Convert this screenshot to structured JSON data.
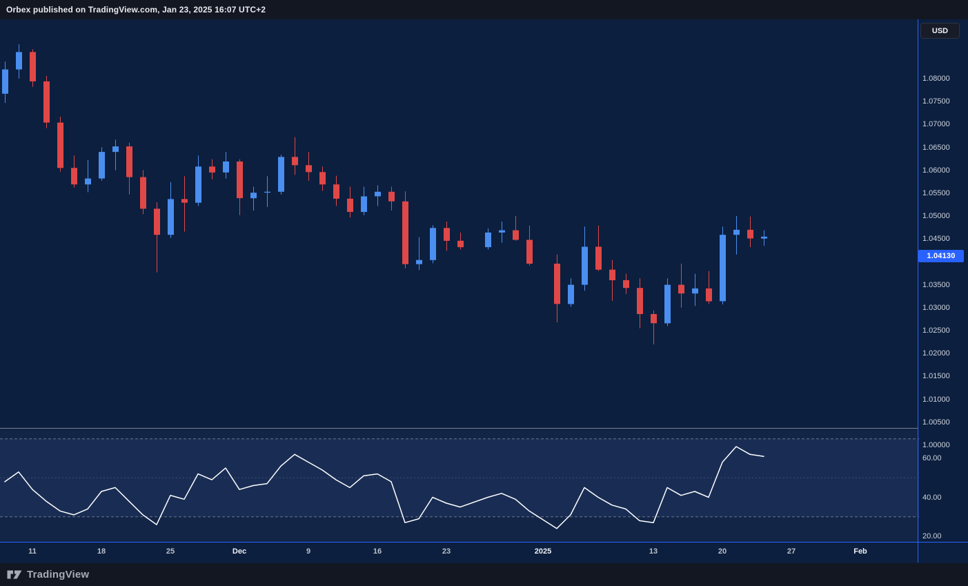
{
  "header": {
    "attribution": "Orbex published on TradingView.com, Jan 23, 2025 16:07 UTC+2"
  },
  "price_axis": {
    "currency_button": "USD"
  },
  "footer": {
    "brand": "TradingView"
  },
  "chart_data": {
    "type": "candlestick",
    "title": "",
    "last_price": {
      "label": "1.04130",
      "value": 1.0413
    },
    "colors": {
      "background": "#0c1f3e",
      "up": "#4a8ef0",
      "down": "#e04848",
      "rsi_line": "#ffffff",
      "accent_blue": "#2962ff",
      "level_line": "#8a8ea0"
    },
    "y_axis": {
      "min": 1.0,
      "max": 1.08,
      "tick_step": 0.005,
      "ticks": [
        {
          "label": "1.08000",
          "price": 1.08
        },
        {
          "label": "1.07500",
          "price": 1.075
        },
        {
          "label": "1.07000",
          "price": 1.07
        },
        {
          "label": "1.06500",
          "price": 1.065
        },
        {
          "label": "1.06000",
          "price": 1.06
        },
        {
          "label": "1.05500",
          "price": 1.055
        },
        {
          "label": "1.05000",
          "price": 1.05
        },
        {
          "label": "1.04500",
          "price": 1.045
        },
        {
          "label": "1.03500",
          "price": 1.035
        },
        {
          "label": "1.03000",
          "price": 1.03
        },
        {
          "label": "1.02500",
          "price": 1.025
        },
        {
          "label": "1.02000",
          "price": 1.02
        },
        {
          "label": "1.01500",
          "price": 1.015
        },
        {
          "label": "1.01000",
          "price": 1.01
        },
        {
          "label": "1.00500",
          "price": 1.005
        },
        {
          "label": "1.00000",
          "price": 1.0
        }
      ]
    },
    "x_axis": {
      "ticks": [
        {
          "label": "11",
          "slot": 2,
          "major": false
        },
        {
          "label": "18",
          "slot": 7,
          "major": false
        },
        {
          "label": "25",
          "slot": 12,
          "major": false
        },
        {
          "label": "Dec",
          "slot": 17,
          "major": true
        },
        {
          "label": "9",
          "slot": 22,
          "major": false
        },
        {
          "label": "16",
          "slot": 27,
          "major": false
        },
        {
          "label": "23",
          "slot": 32,
          "major": false
        },
        {
          "label": "2025",
          "slot": 39,
          "major": true
        },
        {
          "label": "13",
          "slot": 47,
          "major": false
        },
        {
          "label": "20",
          "slot": 52,
          "major": false
        },
        {
          "label": "27",
          "slot": 57,
          "major": false
        },
        {
          "label": "Feb",
          "slot": 62,
          "major": true
        }
      ]
    },
    "candles": [
      {
        "d": "Nov 7",
        "s": 0,
        "o": 1.0725,
        "h": 1.0795,
        "l": 1.0705,
        "c": 1.0778
      },
      {
        "d": "Nov 8",
        "s": 1,
        "o": 1.0778,
        "h": 1.0833,
        "l": 1.0758,
        "c": 1.0816
      },
      {
        "d": "Nov 11",
        "s": 2,
        "o": 1.0816,
        "h": 1.0822,
        "l": 1.074,
        "c": 1.0752
      },
      {
        "d": "Nov 12",
        "s": 3,
        "o": 1.0752,
        "h": 1.0764,
        "l": 1.065,
        "c": 1.0662
      },
      {
        "d": "Nov 13",
        "s": 4,
        "o": 1.0662,
        "h": 1.0675,
        "l": 1.0555,
        "c": 1.0563
      },
      {
        "d": "Nov 14",
        "s": 5,
        "o": 1.0563,
        "h": 1.059,
        "l": 1.052,
        "c": 1.0527
      },
      {
        "d": "Nov 15",
        "s": 6,
        "o": 1.0527,
        "h": 1.058,
        "l": 1.051,
        "c": 1.054
      },
      {
        "d": "Nov 18",
        "s": 7,
        "o": 1.054,
        "h": 1.0608,
        "l": 1.0535,
        "c": 1.0598
      },
      {
        "d": "Nov 19",
        "s": 8,
        "o": 1.0598,
        "h": 1.0625,
        "l": 1.0558,
        "c": 1.061
      },
      {
        "d": "Nov 20",
        "s": 9,
        "o": 1.061,
        "h": 1.0618,
        "l": 1.0505,
        "c": 1.0543
      },
      {
        "d": "Nov 21",
        "s": 10,
        "o": 1.0543,
        "h": 1.0558,
        "l": 1.0462,
        "c": 1.0474
      },
      {
        "d": "Nov 22",
        "s": 11,
        "o": 1.0474,
        "h": 1.0488,
        "l": 1.0335,
        "c": 1.0417
      },
      {
        "d": "Nov 25",
        "s": 12,
        "o": 1.0417,
        "h": 1.0532,
        "l": 1.041,
        "c": 1.0495
      },
      {
        "d": "Nov 26",
        "s": 13,
        "o": 1.0495,
        "h": 1.0545,
        "l": 1.0424,
        "c": 1.0487
      },
      {
        "d": "Nov 27",
        "s": 14,
        "o": 1.0487,
        "h": 1.059,
        "l": 1.048,
        "c": 1.0566
      },
      {
        "d": "Nov 28",
        "s": 15,
        "o": 1.0566,
        "h": 1.0582,
        "l": 1.0538,
        "c": 1.0553
      },
      {
        "d": "Nov 29",
        "s": 16,
        "o": 1.0553,
        "h": 1.0598,
        "l": 1.054,
        "c": 1.0577
      },
      {
        "d": "Dec 2",
        "s": 17,
        "o": 1.0577,
        "h": 1.0582,
        "l": 1.046,
        "c": 1.0497
      },
      {
        "d": "Dec 3",
        "s": 18,
        "o": 1.0497,
        "h": 1.0522,
        "l": 1.047,
        "c": 1.0509
      },
      {
        "d": "Dec 4",
        "s": 19,
        "o": 1.0509,
        "h": 1.0545,
        "l": 1.0478,
        "c": 1.0511
      },
      {
        "d": "Dec 5",
        "s": 20,
        "o": 1.0511,
        "h": 1.0592,
        "l": 1.0505,
        "c": 1.0587
      },
      {
        "d": "Dec 6",
        "s": 21,
        "o": 1.0587,
        "h": 1.063,
        "l": 1.0548,
        "c": 1.0569
      },
      {
        "d": "Dec 9",
        "s": 22,
        "o": 1.0569,
        "h": 1.0598,
        "l": 1.0535,
        "c": 1.0554
      },
      {
        "d": "Dec 10",
        "s": 23,
        "o": 1.0554,
        "h": 1.0566,
        "l": 1.0513,
        "c": 1.0527
      },
      {
        "d": "Dec 11",
        "s": 24,
        "o": 1.0527,
        "h": 1.0546,
        "l": 1.048,
        "c": 1.0496
      },
      {
        "d": "Dec 12",
        "s": 25,
        "o": 1.0496,
        "h": 1.0522,
        "l": 1.0455,
        "c": 1.0467
      },
      {
        "d": "Dec 13",
        "s": 26,
        "o": 1.0467,
        "h": 1.0522,
        "l": 1.046,
        "c": 1.0501
      },
      {
        "d": "Dec 16",
        "s": 27,
        "o": 1.0501,
        "h": 1.0525,
        "l": 1.048,
        "c": 1.0511
      },
      {
        "d": "Dec 17",
        "s": 28,
        "o": 1.0511,
        "h": 1.0522,
        "l": 1.047,
        "c": 1.049
      },
      {
        "d": "Dec 18",
        "s": 29,
        "o": 1.049,
        "h": 1.0512,
        "l": 1.0344,
        "c": 1.0353
      },
      {
        "d": "Dec 19",
        "s": 30,
        "o": 1.0353,
        "h": 1.0412,
        "l": 1.034,
        "c": 1.0362
      },
      {
        "d": "Dec 20",
        "s": 31,
        "o": 1.0362,
        "h": 1.0438,
        "l": 1.0355,
        "c": 1.0432
      },
      {
        "d": "Dec 23",
        "s": 32,
        "o": 1.0432,
        "h": 1.0446,
        "l": 1.0382,
        "c": 1.0404
      },
      {
        "d": "Dec 24",
        "s": 33,
        "o": 1.0404,
        "h": 1.0422,
        "l": 1.0385,
        "c": 1.039
      },
      {
        "d": "Dec 26",
        "s": 35,
        "o": 1.039,
        "h": 1.0431,
        "l": 1.0385,
        "c": 1.0422
      },
      {
        "d": "Dec 27",
        "s": 36,
        "o": 1.0422,
        "h": 1.0446,
        "l": 1.04,
        "c": 1.0427
      },
      {
        "d": "Dec 30",
        "s": 37,
        "o": 1.0427,
        "h": 1.0458,
        "l": 1.0404,
        "c": 1.0406
      },
      {
        "d": "Dec 31",
        "s": 38,
        "o": 1.0406,
        "h": 1.0437,
        "l": 1.035,
        "c": 1.0354
      },
      {
        "d": "Jan 2",
        "s": 40,
        "o": 1.0354,
        "h": 1.0374,
        "l": 1.0226,
        "c": 1.0266
      },
      {
        "d": "Jan 3",
        "s": 41,
        "o": 1.0266,
        "h": 1.0322,
        "l": 1.026,
        "c": 1.0308
      },
      {
        "d": "Jan 6",
        "s": 42,
        "o": 1.0308,
        "h": 1.0435,
        "l": 1.0295,
        "c": 1.0391
      },
      {
        "d": "Jan 7",
        "s": 43,
        "o": 1.0391,
        "h": 1.0437,
        "l": 1.0338,
        "c": 1.0341
      },
      {
        "d": "Jan 8",
        "s": 44,
        "o": 1.0341,
        "h": 1.0362,
        "l": 1.0273,
        "c": 1.0318
      },
      {
        "d": "Jan 9",
        "s": 45,
        "o": 1.0318,
        "h": 1.0332,
        "l": 1.0288,
        "c": 1.0301
      },
      {
        "d": "Jan 10",
        "s": 46,
        "o": 1.0301,
        "h": 1.0322,
        "l": 1.0213,
        "c": 1.0244
      },
      {
        "d": "Jan 13",
        "s": 47,
        "o": 1.0244,
        "h": 1.0252,
        "l": 1.0178,
        "c": 1.0224
      },
      {
        "d": "Jan 14",
        "s": 48,
        "o": 1.0224,
        "h": 1.0322,
        "l": 1.0218,
        "c": 1.0308
      },
      {
        "d": "Jan 15",
        "s": 49,
        "o": 1.0308,
        "h": 1.0354,
        "l": 1.0258,
        "c": 1.0289
      },
      {
        "d": "Jan 16",
        "s": 50,
        "o": 1.0289,
        "h": 1.0332,
        "l": 1.0262,
        "c": 1.03
      },
      {
        "d": "Jan 17",
        "s": 51,
        "o": 1.03,
        "h": 1.0338,
        "l": 1.0266,
        "c": 1.0272
      },
      {
        "d": "Jan 20",
        "s": 52,
        "o": 1.0272,
        "h": 1.0435,
        "l": 1.0265,
        "c": 1.0417
      },
      {
        "d": "Jan 21",
        "s": 53,
        "o": 1.0417,
        "h": 1.0458,
        "l": 1.0374,
        "c": 1.0428
      },
      {
        "d": "Jan 22",
        "s": 54,
        "o": 1.0428,
        "h": 1.0457,
        "l": 1.039,
        "c": 1.0409
      },
      {
        "d": "Jan 23",
        "s": 55,
        "o": 1.0409,
        "h": 1.0427,
        "l": 1.0393,
        "c": 1.0413
      }
    ],
    "indicator": {
      "type": "line",
      "name": "RSI",
      "levels": [
        70,
        50,
        30
      ],
      "y_ticks": [
        {
          "label": "60.00",
          "value": 60
        },
        {
          "label": "40.00",
          "value": 40
        },
        {
          "label": "20.00",
          "value": 20
        }
      ],
      "values": [
        48,
        53,
        44,
        38,
        33,
        31,
        34,
        43,
        45,
        38,
        31,
        26,
        41,
        39,
        52,
        49,
        55,
        44,
        46,
        47,
        56,
        62,
        58,
        54,
        49,
        45,
        51,
        52,
        48,
        27,
        29,
        40,
        37,
        35,
        40,
        42,
        39,
        33,
        24,
        31,
        45,
        40,
        36,
        34,
        28,
        27,
        45,
        41,
        43,
        40,
        58,
        66,
        62,
        61
      ]
    }
  }
}
